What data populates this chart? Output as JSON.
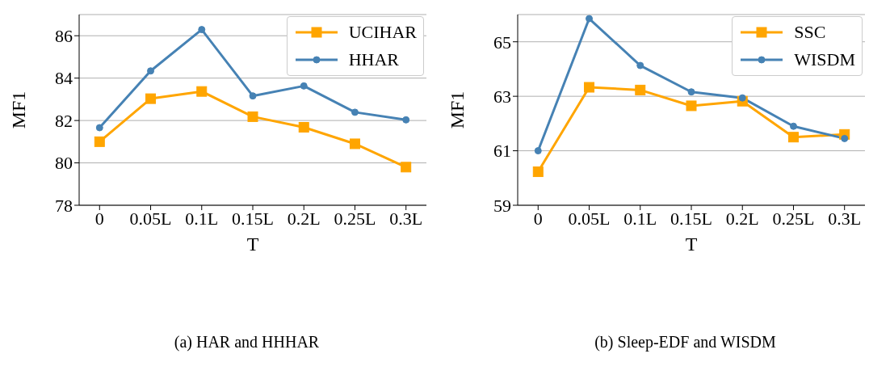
{
  "chart_data": [
    {
      "type": "line",
      "xlabel": "T",
      "ylabel": "MF1",
      "categories": [
        "0",
        "0.05L",
        "0.1L",
        "0.15L",
        "0.2L",
        "0.25L",
        "0.3L"
      ],
      "ylim": [
        78,
        87
      ],
      "yticks": [
        78,
        80,
        82,
        84,
        86
      ],
      "grid": "y",
      "legend": "top right",
      "annotations": [
        "(a) HAR and HHHAR"
      ],
      "series": [
        {
          "name": "UCIHAR",
          "color": "#ffa500",
          "marker": "square",
          "values": [
            81.0,
            83.03,
            83.37,
            82.18,
            81.68,
            80.9,
            79.8
          ]
        },
        {
          "name": "HHAR",
          "color": "#4682b4",
          "marker": "circle",
          "values": [
            81.66,
            84.34,
            86.29,
            83.16,
            83.63,
            82.39,
            82.03
          ]
        }
      ]
    },
    {
      "type": "line",
      "xlabel": "T",
      "ylabel": "MF1",
      "categories": [
        "0",
        "0.05L",
        "0.1L",
        "0.15L",
        "0.2L",
        "0.25L",
        "0.3L"
      ],
      "ylim": [
        59,
        66
      ],
      "yticks": [
        59,
        61,
        63,
        65
      ],
      "grid": "y",
      "legend": "top right",
      "annotations": [
        "(b) Sleep-EDF and WISDM"
      ],
      "series": [
        {
          "name": "SSC",
          "color": "#ffa500",
          "marker": "square",
          "values": [
            60.23,
            63.33,
            63.23,
            62.65,
            62.82,
            61.5,
            61.6
          ]
        },
        {
          "name": "WISDM",
          "color": "#4682b4",
          "marker": "circle",
          "values": [
            61.0,
            65.85,
            64.13,
            63.16,
            62.94,
            61.9,
            61.45
          ]
        }
      ]
    }
  ]
}
